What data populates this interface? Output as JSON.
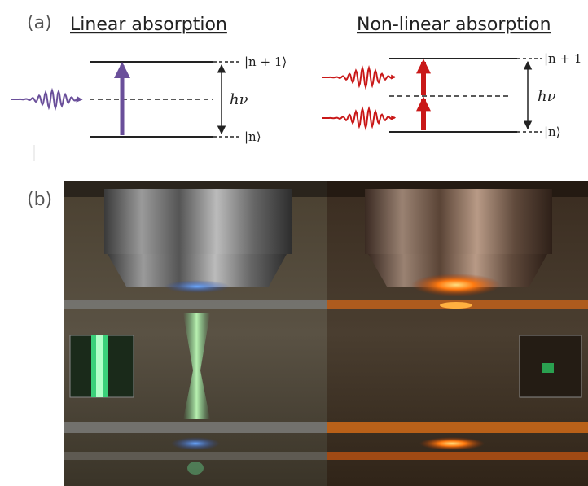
{
  "panel_a": {
    "label": "(a)",
    "left": {
      "title": "Linear absorption",
      "upper_level": "|n + 1⟩",
      "lower_level": "|n⟩",
      "energy": "hν"
    },
    "right": {
      "title": "Non-linear absorption",
      "upper_level": "|n + 1",
      "lower_level": "|n⟩",
      "energy": "hν"
    }
  },
  "panel_b": {
    "label": "(b)"
  }
}
